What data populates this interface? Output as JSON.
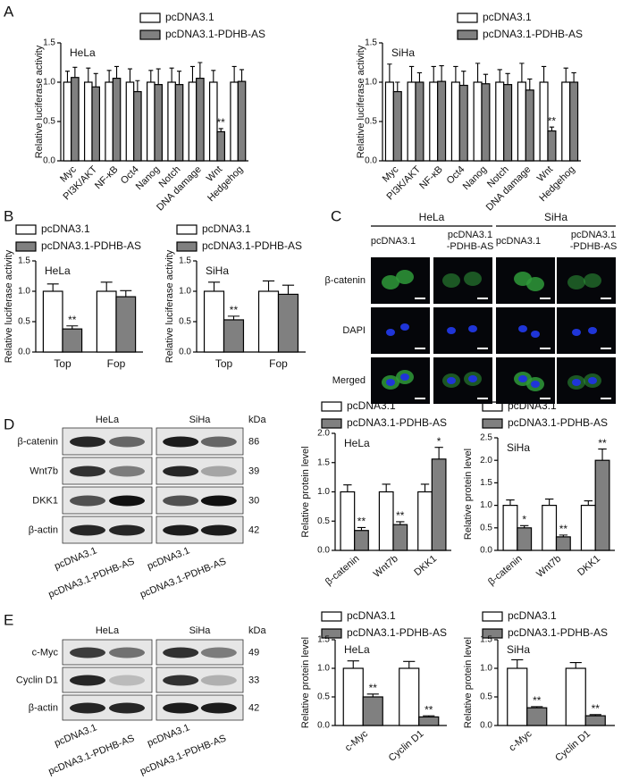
{
  "panel_labels": [
    "A",
    "B",
    "C",
    "D",
    "E"
  ],
  "chart_data": [
    {
      "type": "bar",
      "title": "HeLa",
      "y_label": "Relative luciferase activity",
      "categories": [
        "Myc",
        "PI3K/AKT",
        "NF-κB",
        "Oct4",
        "Nanog",
        "Notch",
        "DNA damage",
        "Wnt",
        "Hedgehog"
      ],
      "series": [
        {
          "name": "pcDNA3.1",
          "color": "#ffffff",
          "values": [
            1,
            1,
            1,
            1,
            1,
            1,
            1,
            1,
            1
          ],
          "errors": [
            0.14,
            0.18,
            0.15,
            0.17,
            0.15,
            0.18,
            0.2,
            0.15,
            0.2
          ],
          "significance": [
            null,
            null,
            null,
            null,
            null,
            null,
            null,
            null,
            null
          ]
        },
        {
          "name": "pcDNA3.1-PDHB-AS",
          "color": "#808080",
          "values": [
            1.06,
            0.94,
            1.05,
            0.88,
            0.97,
            0.97,
            1.05,
            0.37,
            1.01
          ],
          "errors": [
            0.13,
            0.17,
            0.15,
            0.14,
            0.2,
            0.17,
            0.2,
            0.04,
            0.15
          ],
          "significance": [
            null,
            null,
            null,
            null,
            null,
            null,
            null,
            "**",
            null
          ]
        }
      ],
      "ylim": [
        0,
        1.5
      ],
      "yticks": [
        {
          "value": 0,
          "label": "0.0"
        },
        0.5,
        {
          "value": 1,
          "label": "1.0"
        },
        1.5
      ]
    },
    {
      "type": "bar",
      "title": "SiHa",
      "y_label": "Relative luciferase activity",
      "categories": [
        "Myc",
        "PI3K/AKT",
        "NF-κB",
        "Oct4",
        "Nanog",
        "Notch",
        "DNA damage",
        "Wnt",
        "Hedgehog"
      ],
      "series": [
        {
          "name": "pcDNA3.1",
          "color": "#ffffff",
          "values": [
            1,
            1,
            1,
            1,
            1,
            1,
            1,
            1,
            1
          ],
          "errors": [
            0.23,
            0.2,
            0.2,
            0.2,
            0.24,
            0.16,
            0.24,
            0.2,
            0.18
          ],
          "significance": [
            null,
            null,
            null,
            null,
            null,
            null,
            null,
            null,
            null
          ]
        },
        {
          "name": "pcDNA3.1-PDHB-AS",
          "color": "#808080",
          "values": [
            0.88,
            1,
            1.01,
            0.96,
            0.98,
            0.97,
            0.9,
            0.38,
            1
          ],
          "errors": [
            0.12,
            0.12,
            0.2,
            0.18,
            0.12,
            0.14,
            0.14,
            0.05,
            0.12
          ],
          "significance": [
            null,
            null,
            null,
            null,
            null,
            null,
            null,
            "**",
            null
          ]
        }
      ],
      "ylim": [
        0,
        1.5
      ],
      "yticks": [
        {
          "value": 0,
          "label": "0.0"
        },
        0.5,
        {
          "value": 1,
          "label": "1.0"
        },
        1.5
      ]
    },
    {
      "type": "bar",
      "title": "HeLa",
      "y_label": "Relative luciferase activity",
      "categories": [
        "Top",
        "Fop"
      ],
      "series": [
        {
          "name": "pcDNA3.1",
          "color": "#ffffff",
          "values": [
            1,
            1
          ],
          "errors": [
            0.12,
            0.15
          ],
          "significance": [
            null,
            null
          ]
        },
        {
          "name": "pcDNA3.1-PDHB-AS",
          "color": "#808080",
          "values": [
            0.38,
            0.91
          ],
          "errors": [
            0.05,
            0.1
          ],
          "significance": [
            "**",
            null
          ]
        }
      ],
      "ylim": [
        0,
        1.5
      ],
      "yticks": [
        {
          "value": 0,
          "label": "0.0"
        },
        0.5,
        {
          "value": 1,
          "label": "1.0"
        },
        1.5
      ]
    },
    {
      "type": "bar",
      "title": "SiHa",
      "y_label": "Relative luciferase activity",
      "categories": [
        "Top",
        "Fop"
      ],
      "series": [
        {
          "name": "pcDNA3.1",
          "color": "#ffffff",
          "values": [
            1,
            1
          ],
          "errors": [
            0.15,
            0.17
          ],
          "significance": [
            null,
            null
          ]
        },
        {
          "name": "pcDNA3.1-PDHB-AS",
          "color": "#808080",
          "values": [
            0.53,
            0.95
          ],
          "errors": [
            0.06,
            0.15
          ],
          "significance": [
            "**",
            null
          ]
        }
      ],
      "ylim": [
        0,
        1.5
      ],
      "yticks": [
        {
          "value": 0,
          "label": "0.0"
        },
        0.5,
        {
          "value": 1,
          "label": "1.0"
        },
        1.5
      ]
    },
    {
      "type": "bar",
      "title": "HeLa",
      "y_label": "Relative protein level",
      "categories": [
        "β-catenin",
        "Wnt7b",
        "DKK1"
      ],
      "series": [
        {
          "name": "pcDNA3.1",
          "color": "#ffffff",
          "values": [
            1,
            1,
            1
          ],
          "errors": [
            0.12,
            0.13,
            0.13
          ],
          "significance": [
            null,
            null,
            null
          ]
        },
        {
          "name": "pcDNA3.1-PDHB-AS",
          "color": "#808080",
          "values": [
            0.34,
            0.44,
            1.56
          ],
          "errors": [
            0.05,
            0.05,
            0.2
          ],
          "significance": [
            "**",
            "**",
            "*"
          ]
        }
      ],
      "ylim": [
        0,
        2
      ],
      "yticks": [
        {
          "value": 0,
          "label": "0.0"
        },
        0.5,
        {
          "value": 1,
          "label": "1.0"
        },
        1.5,
        {
          "value": 2,
          "label": "2.0"
        }
      ]
    },
    {
      "type": "bar",
      "title": "SiHa",
      "y_label": "Relative protein level",
      "categories": [
        "β-catenin",
        "Wnt7b",
        "DKK1"
      ],
      "series": [
        {
          "name": "pcDNA3.1",
          "color": "#ffffff",
          "values": [
            1,
            1,
            1
          ],
          "errors": [
            0.12,
            0.14,
            0.1
          ],
          "significance": [
            null,
            null,
            null
          ]
        },
        {
          "name": "pcDNA3.1-PDHB-AS",
          "color": "#808080",
          "values": [
            0.5,
            0.3,
            2
          ],
          "errors": [
            0.05,
            0.04,
            0.25
          ],
          "significance": [
            "*",
            "**",
            "**"
          ]
        }
      ],
      "ylim": [
        0,
        2.5
      ],
      "yticks": [
        {
          "value": 0,
          "label": "0.0"
        },
        0.5,
        {
          "value": 1,
          "label": "1.0"
        },
        1.5,
        {
          "value": 2,
          "label": "2.0"
        },
        2.5
      ]
    },
    {
      "type": "bar",
      "title": "HeLa",
      "y_label": "Relative protein level",
      "categories": [
        "c-Myc",
        "Cyclin D1"
      ],
      "series": [
        {
          "name": "pcDNA3.1",
          "color": "#ffffff",
          "values": [
            1,
            1
          ],
          "errors": [
            0.13,
            0.12
          ],
          "significance": [
            null,
            null
          ]
        },
        {
          "name": "pcDNA3.1-PDHB-AS",
          "color": "#808080",
          "values": [
            0.5,
            0.15
          ],
          "errors": [
            0.05,
            0.02
          ],
          "significance": [
            "**",
            "**"
          ]
        }
      ],
      "ylim": [
        0,
        1.5
      ],
      "yticks": [
        {
          "value": 0,
          "label": "0.0"
        },
        0.5,
        {
          "value": 1,
          "label": "1.0"
        },
        1.5
      ]
    },
    {
      "type": "bar",
      "title": "SiHa",
      "y_label": "Relative protein level",
      "categories": [
        "c-Myc",
        "Cyclin D1"
      ],
      "series": [
        {
          "name": "pcDNA3.1",
          "color": "#ffffff",
          "values": [
            1,
            1
          ],
          "errors": [
            0.15,
            0.1
          ],
          "significance": [
            null,
            null
          ]
        },
        {
          "name": "pcDNA3.1-PDHB-AS",
          "color": "#808080",
          "values": [
            0.31,
            0.17
          ],
          "errors": [
            0.02,
            0.02
          ],
          "significance": [
            "**",
            "**"
          ]
        }
      ],
      "ylim": [
        0,
        1.5
      ],
      "yticks": [
        {
          "value": 0,
          "label": "0.0"
        },
        0.5,
        {
          "value": 1,
          "label": "1.0"
        },
        1.5
      ]
    }
  ],
  "microscopy": {
    "groups": [
      "HeLa",
      "SiHa"
    ],
    "columns": [
      [
        "pcDNA3.1"
      ],
      [
        "pcDNA3.1",
        "-PDHB-AS"
      ],
      [
        "pcDNA3.1"
      ],
      [
        "pcDNA3.1",
        "-PDHB-AS"
      ]
    ],
    "rows": [
      "β-catenin",
      "DAPI",
      "Merged"
    ]
  },
  "blots": [
    {
      "groups": [
        "HeLa",
        "SiHa"
      ],
      "unit": "kDa",
      "rows": [
        {
          "label": "β-catenin",
          "kda": 86
        },
        {
          "label": "Wnt7b",
          "kda": 39
        },
        {
          "label": "DKK1",
          "kda": 30
        },
        {
          "label": "β-actin",
          "kda": 42
        }
      ],
      "lanes": [
        "pcDNA3.1",
        "pcDNA3.1-PDHB-AS"
      ]
    },
    {
      "groups": [
        "HeLa",
        "SiHa"
      ],
      "unit": "kDa",
      "rows": [
        {
          "label": "c-Myc",
          "kda": 49
        },
        {
          "label": "Cyclin D1",
          "kda": 33
        },
        {
          "label": "β-actin",
          "kda": 42
        }
      ],
      "lanes": [
        "pcDNA3.1",
        "pcDNA3.1-PDHB-AS"
      ]
    }
  ]
}
